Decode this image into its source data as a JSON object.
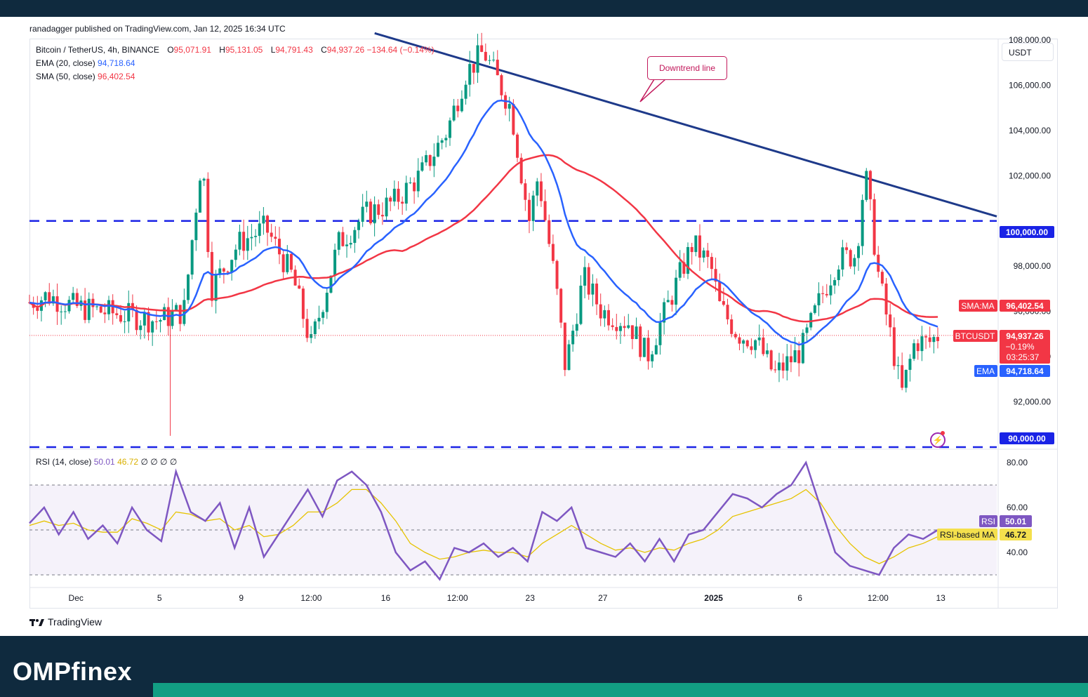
{
  "header": {
    "published": "ranadagger published on TradingView.com, Jan 12, 2025 16:34 UTC"
  },
  "legend": {
    "symbol": "Bitcoin / TetherUS, 4h, BINANCE",
    "open_label": "O",
    "open": "95,071.91",
    "high_label": "H",
    "high": "95,131.05",
    "low_label": "L",
    "low": "94,791.43",
    "close_label": "C",
    "close": "94,937.26",
    "change": "−134.64 (−0.14%)",
    "ema_label": "EMA (20, close)",
    "ema_value": "94,718.64",
    "sma_label": "SMA (50, close)",
    "sma_value": "96,402.54",
    "rsi_label": "RSI (14, close)",
    "rsi_value": "50.01",
    "rsi_ma_value": "46.72",
    "rsi_extra": "∅ ∅ ∅ ∅"
  },
  "currency_button": "USDT",
  "annotation": {
    "callout": "Downtrend line"
  },
  "price_tags": {
    "sma": {
      "label": "SMA:MA",
      "value": "96,402.54"
    },
    "current": {
      "label": "BTCUSDT",
      "value": "94,937.26",
      "change": "−0.19%",
      "countdown": "03:25:37"
    },
    "ema": {
      "label": "EMA",
      "value": "94,718.64"
    },
    "level_100k": "100,000.00",
    "level_90k": "90,000.00",
    "rsi": {
      "label": "RSI",
      "value": "50.01"
    },
    "rsi_ma": {
      "label": "RSI-based MA",
      "value": "46.72"
    }
  },
  "footer": {
    "tradingview": "TradingView",
    "brand": "OMPfinex"
  },
  "colors": {
    "ema": "#2962ff",
    "sma": "#f23645",
    "up": "#089981",
    "down": "#f23645",
    "trendline": "#1e3a8a",
    "level": "#1a23e6",
    "rsi": "#7e57c2",
    "rsi_ma": "#e6c300",
    "band": "#0f2a3e",
    "accent": "#129e83"
  },
  "chart_data": [
    {
      "type": "candlestick",
      "title": "Bitcoin / TetherUS, 4h, BINANCE",
      "ylim": [
        90000,
        108000
      ],
      "y_ticks": [
        92000,
        94000,
        96000,
        98000,
        100000,
        102000,
        104000,
        106000,
        108000
      ],
      "y_tick_labels": [
        "92,000.00",
        "94,000.00",
        "96,000.00",
        "98,000.00",
        "100,000.00",
        "102,000.00",
        "104,000.00",
        "106,000.00",
        "108,000.00"
      ],
      "x_tick_labels": [
        "Dec",
        "5",
        "9",
        "12:00",
        "16",
        "12:00",
        "23",
        "27",
        "2025",
        "6",
        "12:00",
        "13"
      ],
      "horizontal_levels": [
        100000,
        90000
      ],
      "trendline": {
        "label": "Downtrend line",
        "from": [
          -0.4,
          108300
        ],
        "to": [
          1.0,
          100200
        ]
      },
      "series_close_path": [
        {
          "t": 0.0,
          "close": 96400
        },
        {
          "t": 0.02,
          "close": 96700
        },
        {
          "t": 0.05,
          "close": 96200
        },
        {
          "t": 0.08,
          "close": 96000
        },
        {
          "t": 0.11,
          "close": 95800
        },
        {
          "t": 0.14,
          "close": 95600
        },
        {
          "t": 0.17,
          "close": 96000
        },
        {
          "t": 0.19,
          "close": 103000
        },
        {
          "t": 0.2,
          "close": 97000
        },
        {
          "t": 0.23,
          "close": 99000
        },
        {
          "t": 0.26,
          "close": 99700
        },
        {
          "t": 0.29,
          "close": 97500
        },
        {
          "t": 0.31,
          "close": 94500
        },
        {
          "t": 0.34,
          "close": 99000
        },
        {
          "t": 0.37,
          "close": 100300
        },
        {
          "t": 0.4,
          "close": 100800
        },
        {
          "t": 0.43,
          "close": 102000
        },
        {
          "t": 0.46,
          "close": 104000
        },
        {
          "t": 0.48,
          "close": 106500
        },
        {
          "t": 0.5,
          "close": 107500
        },
        {
          "t": 0.53,
          "close": 105000
        },
        {
          "t": 0.55,
          "close": 100000
        },
        {
          "t": 0.56,
          "close": 102000
        },
        {
          "t": 0.58,
          "close": 97000
        },
        {
          "t": 0.59,
          "close": 93500
        },
        {
          "t": 0.61,
          "close": 97500
        },
        {
          "t": 0.63,
          "close": 96000
        },
        {
          "t": 0.66,
          "close": 95500
        },
        {
          "t": 0.68,
          "close": 94000
        },
        {
          "t": 0.7,
          "close": 96000
        },
        {
          "t": 0.73,
          "close": 99000
        },
        {
          "t": 0.75,
          "close": 98000
        },
        {
          "t": 0.76,
          "close": 96200
        },
        {
          "t": 0.78,
          "close": 95000
        },
        {
          "t": 0.8,
          "close": 94700
        },
        {
          "t": 0.82,
          "close": 93200
        },
        {
          "t": 0.85,
          "close": 94300
        },
        {
          "t": 0.87,
          "close": 96500
        },
        {
          "t": 0.89,
          "close": 98300
        },
        {
          "t": 0.91,
          "close": 98500
        },
        {
          "t": 0.92,
          "close": 102200
        },
        {
          "t": 0.935,
          "close": 97500
        },
        {
          "t": 0.95,
          "close": 94500
        },
        {
          "t": 0.96,
          "close": 92300
        },
        {
          "t": 0.975,
          "close": 94700
        },
        {
          "t": 0.99,
          "close": 94600
        },
        {
          "t": 1.0,
          "close": 94937
        }
      ],
      "series": [
        {
          "name": "EMA (20, close)",
          "last": 94718.64
        },
        {
          "name": "SMA (50, close)",
          "last": 96402.54
        }
      ]
    },
    {
      "type": "line",
      "title": "RSI (14, close)",
      "ylim": [
        25,
        85
      ],
      "y_ticks": [
        40,
        60,
        80
      ],
      "y_tick_labels": [
        "40.00",
        "60.00",
        "80.00"
      ],
      "bands": [
        30,
        50,
        70
      ],
      "series": [
        {
          "name": "RSI",
          "last": 50.01,
          "values": [
            53,
            60,
            48,
            58,
            46,
            52,
            44,
            60,
            50,
            45,
            76,
            58,
            54,
            62,
            42,
            60,
            38,
            48,
            58,
            68,
            56,
            72,
            76,
            70,
            58,
            40,
            32,
            36,
            28,
            42,
            40,
            44,
            38,
            42,
            36,
            58,
            54,
            60,
            42,
            40,
            38,
            44,
            36,
            46,
            36,
            48,
            50,
            58,
            66,
            64,
            60,
            66,
            70,
            80,
            60,
            40,
            34,
            32,
            30,
            42,
            48,
            46,
            50
          ]
        },
        {
          "name": "RSI-based MA",
          "last": 46.72,
          "values": [
            52,
            54,
            52,
            53,
            50,
            49,
            49,
            55,
            53,
            50,
            58,
            57,
            54,
            55,
            50,
            52,
            47,
            48,
            52,
            58,
            58,
            62,
            68,
            68,
            62,
            54,
            44,
            40,
            37,
            38,
            40,
            41,
            40,
            40,
            38,
            44,
            48,
            52,
            48,
            44,
            41,
            42,
            40,
            42,
            41,
            44,
            46,
            50,
            56,
            58,
            60,
            62,
            64,
            68,
            62,
            52,
            44,
            38,
            35,
            38,
            42,
            44,
            47
          ]
        }
      ]
    }
  ]
}
